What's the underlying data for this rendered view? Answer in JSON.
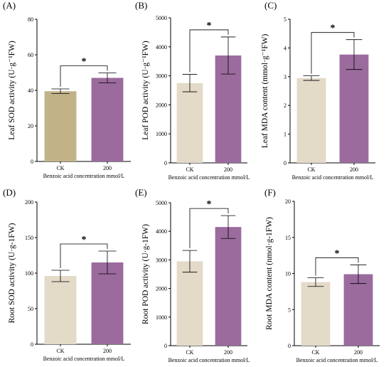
{
  "chart_data": [
    {
      "panel_label": "(A)",
      "type": "bar",
      "categories": [
        "CK",
        "200"
      ],
      "values": [
        39.5,
        47
      ],
      "errors": [
        1.3,
        2.8
      ],
      "colors": [
        "#c2b288",
        "#9b6b9e"
      ],
      "xlabel": "Benzoic acid concentration mmol/L",
      "ylabel": "Leaf SOD activity (U·g⁻¹FW)",
      "ylim": [
        0,
        80
      ],
      "yticks": [
        0,
        20,
        40,
        60,
        80
      ],
      "significance": "*"
    },
    {
      "panel_label": "(B)",
      "type": "bar",
      "categories": [
        "CK",
        "200"
      ],
      "values": [
        2750,
        3700
      ],
      "errors": [
        300,
        640
      ],
      "colors": [
        "#e3dac8",
        "#9b6b9e"
      ],
      "xlabel": "Benzoic acid concentration mmol/L",
      "ylabel": "Leaf POD activity (U·g⁻¹FW)",
      "ylim": [
        0,
        5000
      ],
      "yticks": [
        0,
        1000,
        2000,
        3000,
        4000,
        5000
      ],
      "significance": "*"
    },
    {
      "panel_label": "(C)",
      "type": "bar",
      "categories": [
        "CK",
        "200"
      ],
      "values": [
        2.95,
        3.77
      ],
      "errors": [
        0.08,
        0.52
      ],
      "colors": [
        "#e3dac8",
        "#9b6b9e"
      ],
      "xlabel": "Benzoic acid concentration mmol/L",
      "ylabel": "Leaf MDA content (mmol·g⁻¹FW)",
      "ylim": [
        0,
        5
      ],
      "yticks": [
        0,
        1,
        2,
        3,
        4,
        5
      ],
      "significance": "*"
    },
    {
      "panel_label": "(D)",
      "type": "bar",
      "categories": [
        "CK",
        "200"
      ],
      "values": [
        96,
        115
      ],
      "errors": [
        8,
        16
      ],
      "colors": [
        "#e3dac8",
        "#9b6b9e"
      ],
      "xlabel": "Benzoic acid concentration mmol/L",
      "ylabel": "Root SOD activity (U·g-1FW)",
      "ylim": [
        0,
        200
      ],
      "yticks": [
        0,
        50,
        100,
        150,
        200
      ],
      "significance": "*"
    },
    {
      "panel_label": "(E)",
      "type": "bar",
      "categories": [
        "CK",
        "200"
      ],
      "values": [
        2950,
        4150
      ],
      "errors": [
        380,
        400
      ],
      "colors": [
        "#e3dac8",
        "#9b6b9e"
      ],
      "xlabel": "Benzoic acid concentration mmol/L",
      "ylabel": "Root POD activity (U·g-1FW)",
      "ylim": [
        0,
        5000
      ],
      "yticks": [
        0,
        1000,
        2000,
        3000,
        4000,
        5000
      ],
      "significance": "*"
    },
    {
      "panel_label": "(F)",
      "type": "bar",
      "categories": [
        "CK",
        "200"
      ],
      "values": [
        8.8,
        9.9
      ],
      "errors": [
        0.6,
        1.3
      ],
      "colors": [
        "#e3dac8",
        "#9b6b9e"
      ],
      "xlabel": "Benzoic acid concentration mmol/L",
      "ylabel": "Root MDA content (nmol·g-1FW)",
      "ylim": [
        0,
        20
      ],
      "yticks": [
        0,
        5,
        10,
        15,
        20
      ],
      "significance": "*"
    }
  ]
}
